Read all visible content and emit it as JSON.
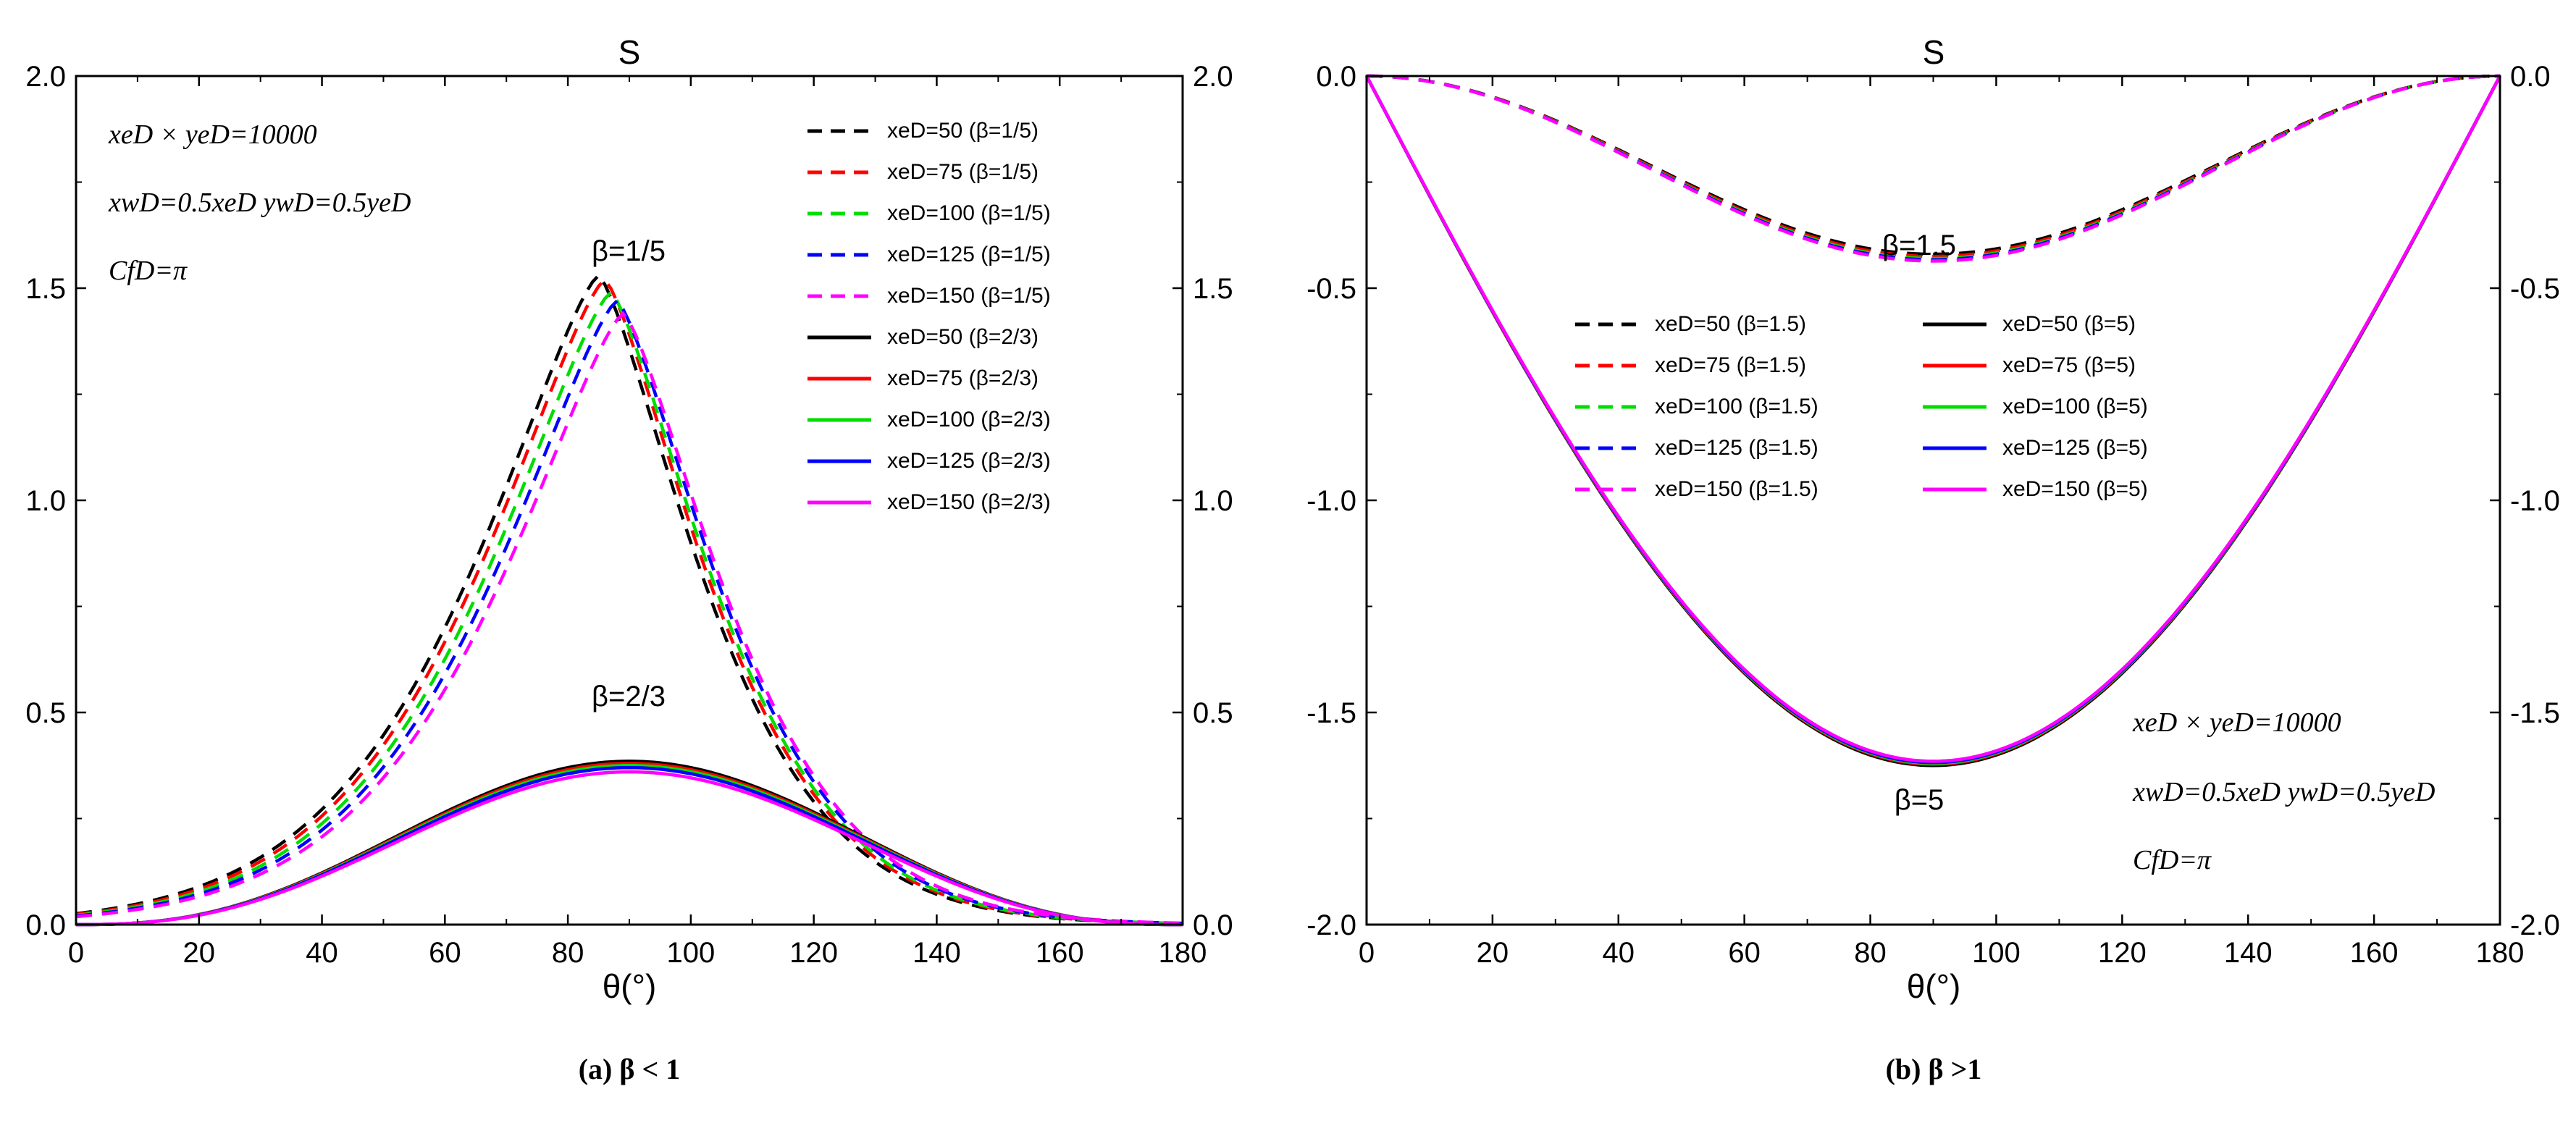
{
  "chart_data": [
    {
      "type": "line",
      "title": "S",
      "xlabel": "θ(°)",
      "ylabel": "",
      "xlim": [
        0,
        180
      ],
      "ylim": [
        0,
        2.0
      ],
      "x_ticks": [
        "0",
        "20",
        "40",
        "60",
        "80",
        "100",
        "120",
        "140",
        "160",
        "180"
      ],
      "y_ticks": [
        "0.0",
        "0.5",
        "1.0",
        "1.5",
        "2.0"
      ],
      "caption": "(a)  β < 1",
      "annotation_lines": [
        "xeD × yeD=10000",
        "xwD=0.5xeD   ywD=0.5yeD",
        "CfD=π"
      ],
      "curve_labels": [
        "β=1/5",
        "β=2/3"
      ],
      "series": [
        {
          "name": "xeD=50 (β=1/5)",
          "color": "#000000",
          "style": "dashed",
          "peak": 1.53,
          "shift": -3,
          "mode": "sharp"
        },
        {
          "name": "xeD=75 (β=1/5)",
          "color": "#ff0000",
          "style": "dashed",
          "peak": 1.52,
          "shift": -2,
          "mode": "sharp"
        },
        {
          "name": "xeD=100 (β=1/5)",
          "color": "#00dd00",
          "style": "dashed",
          "peak": 1.49,
          "shift": -1,
          "mode": "sharp"
        },
        {
          "name": "xeD=125 (β=1/5)",
          "color": "#0000ff",
          "style": "dashed",
          "peak": 1.47,
          "shift": 0,
          "mode": "sharp"
        },
        {
          "name": "xeD=150 (β=1/5)",
          "color": "#ff00ff",
          "style": "dashed",
          "peak": 1.44,
          "shift": 1,
          "mode": "sharp"
        },
        {
          "name": "xeD=50 (β=2/3)",
          "color": "#000000",
          "style": "solid",
          "peak": 0.385,
          "shift": 0,
          "mode": "round"
        },
        {
          "name": "xeD=75 (β=2/3)",
          "color": "#ff0000",
          "style": "solid",
          "peak": 0.38,
          "shift": 0,
          "mode": "round"
        },
        {
          "name": "xeD=100 (β=2/3)",
          "color": "#00dd00",
          "style": "solid",
          "peak": 0.375,
          "shift": 0,
          "mode": "round"
        },
        {
          "name": "xeD=125 (β=2/3)",
          "color": "#0000ff",
          "style": "solid",
          "peak": 0.37,
          "shift": 0,
          "mode": "round"
        },
        {
          "name": "xeD=150 (β=2/3)",
          "color": "#ff00ff",
          "style": "solid",
          "peak": 0.36,
          "shift": 0,
          "mode": "round"
        }
      ]
    },
    {
      "type": "line",
      "title": "S",
      "xlabel": "θ(°)",
      "ylabel": "",
      "xlim": [
        0,
        180
      ],
      "ylim": [
        -2.0,
        0
      ],
      "x_ticks": [
        "0",
        "20",
        "40",
        "60",
        "80",
        "100",
        "120",
        "140",
        "160",
        "180"
      ],
      "y_ticks": [
        "-2.0",
        "-1.5",
        "-1.0",
        "-0.5",
        "0.0"
      ],
      "caption": "(b)  β >1",
      "annotation_lines": [
        "xeD × yeD=10000",
        "xwD=0.5xeD   ywD=0.5yeD",
        "CfD=π"
      ],
      "curve_labels": [
        "β=1.5",
        "β=5"
      ],
      "series": [
        {
          "name": "xeD=50 (β=1.5)",
          "color": "#000000",
          "style": "dashed",
          "peak": -0.42,
          "mode": "cos"
        },
        {
          "name": "xeD=75 (β=1.5)",
          "color": "#ff0000",
          "style": "dashed",
          "peak": -0.425,
          "mode": "cos"
        },
        {
          "name": "xeD=100 (β=1.5)",
          "color": "#00dd00",
          "style": "dashed",
          "peak": -0.43,
          "mode": "cos"
        },
        {
          "name": "xeD=125 (β=1.5)",
          "color": "#0000ff",
          "style": "dashed",
          "peak": -0.433,
          "mode": "cos"
        },
        {
          "name": "xeD=150 (β=1.5)",
          "color": "#ff00ff",
          "style": "dashed",
          "peak": -0.436,
          "mode": "cos"
        },
        {
          "name": "xeD=50 (β=5)",
          "color": "#000000",
          "style": "solid",
          "peak": -1.625,
          "mode": "sin"
        },
        {
          "name": "xeD=75 (β=5)",
          "color": "#ff0000",
          "style": "solid",
          "peak": -1.622,
          "mode": "sin"
        },
        {
          "name": "xeD=100 (β=5)",
          "color": "#00dd00",
          "style": "solid",
          "peak": -1.62,
          "mode": "sin"
        },
        {
          "name": "xeD=125 (β=5)",
          "color": "#0000ff",
          "style": "solid",
          "peak": -1.618,
          "mode": "sin"
        },
        {
          "name": "xeD=150 (β=5)",
          "color": "#ff00ff",
          "style": "solid",
          "peak": -1.615,
          "mode": "sin"
        }
      ]
    }
  ]
}
